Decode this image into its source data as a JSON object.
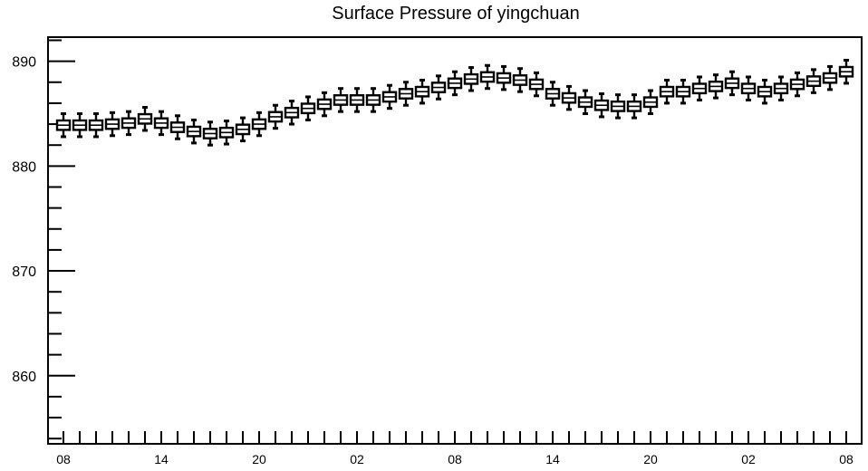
{
  "chart_data": {
    "type": "box",
    "title": "Surface Pressure of yingchuan",
    "xlabel": "",
    "ylabel": "",
    "ylim": [
      853.5,
      892.3
    ],
    "y_ticks": [
      860,
      870,
      880,
      890
    ],
    "y_minor_step": 2,
    "x_tick_labels": [
      "08",
      "14",
      "20",
      "02",
      "08",
      "14",
      "20",
      "02",
      "08"
    ],
    "grid": false,
    "series": [
      {
        "values": [
          883.9,
          883.9,
          883.9,
          884.0,
          884.1,
          884.5,
          884.1,
          883.7,
          883.3,
          883.1,
          883.2,
          883.5,
          884.0,
          884.7,
          885.1,
          885.5,
          885.9,
          886.3,
          886.3,
          886.3,
          886.6,
          886.9,
          887.1,
          887.5,
          887.9,
          888.3,
          888.5,
          888.4,
          888.2,
          887.8,
          886.9,
          886.5,
          886.1,
          885.8,
          885.7,
          885.7,
          886.1,
          887.1,
          887.1,
          887.4,
          887.6,
          887.9,
          887.4,
          887.1,
          887.4,
          887.8,
          888.1,
          888.4,
          889.0
        ],
        "whisker_spread": 1.1
      }
    ]
  }
}
